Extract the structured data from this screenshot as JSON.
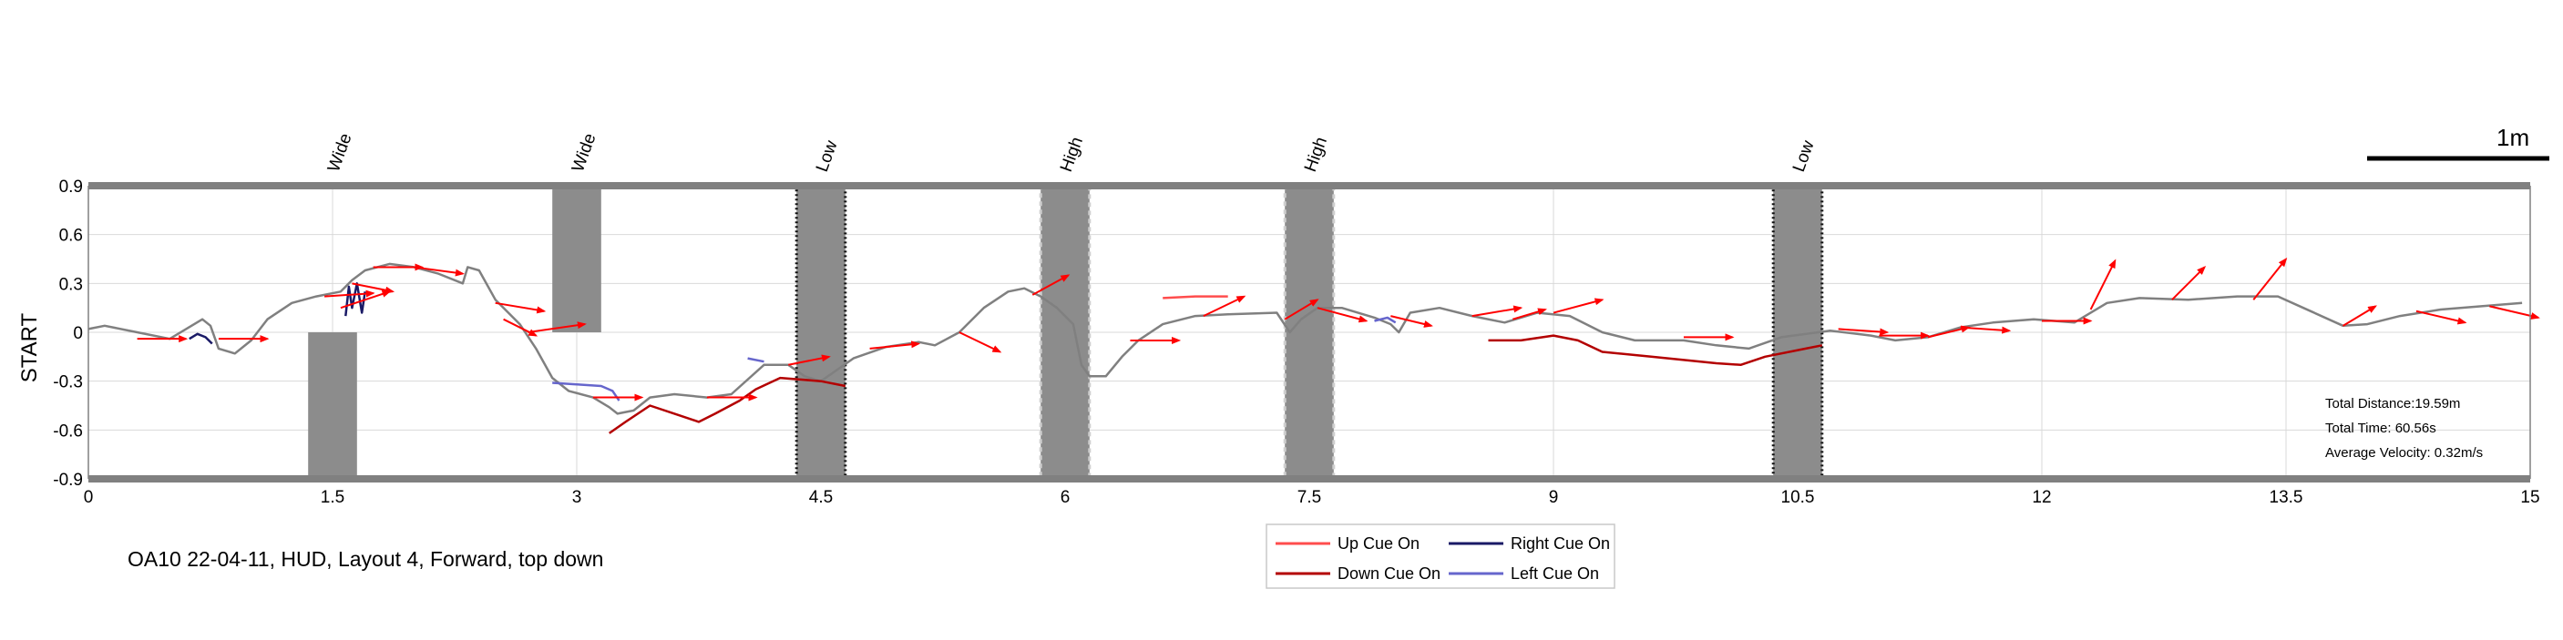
{
  "chart_data": {
    "type": "line",
    "ylabel": "START",
    "xlim": [
      0,
      15
    ],
    "ylim": [
      -0.9,
      0.9
    ],
    "xticks": [
      "0",
      "1.5",
      "3",
      "4.5",
      "6",
      "7.5",
      "9",
      "10.5",
      "12",
      "13.5",
      "15"
    ],
    "xtick_values": [
      0,
      1.5,
      3,
      4.5,
      6,
      7.5,
      9,
      10.5,
      12,
      13.5,
      15
    ],
    "yticks": [
      "0.9",
      "0.6",
      "0.3",
      "0",
      "-0.3",
      "-0.6",
      "-0.9"
    ],
    "ytick_values": [
      0.9,
      0.6,
      0.3,
      0,
      -0.3,
      -0.6,
      -0.9
    ],
    "grid": true,
    "obstacles": [
      {
        "label": "Wide",
        "x0": 1.35,
        "x1": 1.65,
        "y0": -0.9,
        "y1": 0.0,
        "style": "solid"
      },
      {
        "label": "Wide",
        "x0": 2.85,
        "x1": 3.15,
        "y0": 0.0,
        "y1": 0.9,
        "style": "solid"
      },
      {
        "label": "Low",
        "x0": 4.35,
        "x1": 4.65,
        "y0": -0.9,
        "y1": 0.9,
        "style": "dotted-dark"
      },
      {
        "label": "High",
        "x0": 5.85,
        "x1": 6.15,
        "y0": -0.9,
        "y1": 0.9,
        "style": "dashed-light"
      },
      {
        "label": "High",
        "x0": 7.35,
        "x1": 7.65,
        "y0": -0.9,
        "y1": 0.9,
        "style": "dashed-light"
      },
      {
        "label": "Low",
        "x0": 10.35,
        "x1": 10.65,
        "y0": -0.9,
        "y1": 0.9,
        "style": "dotted-dark"
      }
    ],
    "series": [
      {
        "name": "trajectory",
        "color": "#808080",
        "points": [
          [
            0,
            0.02
          ],
          [
            0.1,
            0.04
          ],
          [
            0.3,
            0.0
          ],
          [
            0.5,
            -0.04
          ],
          [
            0.6,
            0.02
          ],
          [
            0.7,
            0.08
          ],
          [
            0.75,
            0.04
          ],
          [
            0.8,
            -0.1
          ],
          [
            0.9,
            -0.13
          ],
          [
            1.0,
            -0.05
          ],
          [
            1.1,
            0.08
          ],
          [
            1.25,
            0.18
          ],
          [
            1.4,
            0.22
          ],
          [
            1.55,
            0.25
          ],
          [
            1.62,
            0.32
          ],
          [
            1.7,
            0.38
          ],
          [
            1.85,
            0.42
          ],
          [
            2.0,
            0.4
          ],
          [
            2.15,
            0.36
          ],
          [
            2.3,
            0.3
          ],
          [
            2.33,
            0.4
          ],
          [
            2.4,
            0.38
          ],
          [
            2.5,
            0.2
          ],
          [
            2.65,
            0.05
          ],
          [
            2.75,
            -0.1
          ],
          [
            2.85,
            -0.28
          ],
          [
            2.95,
            -0.36
          ],
          [
            3.1,
            -0.4
          ],
          [
            3.2,
            -0.46
          ],
          [
            3.25,
            -0.5
          ],
          [
            3.35,
            -0.48
          ],
          [
            3.45,
            -0.4
          ],
          [
            3.6,
            -0.38
          ],
          [
            3.8,
            -0.4
          ],
          [
            3.95,
            -0.38
          ],
          [
            4.15,
            -0.2
          ],
          [
            4.3,
            -0.2
          ],
          [
            4.4,
            -0.27
          ],
          [
            4.5,
            -0.3
          ],
          [
            4.7,
            -0.16
          ],
          [
            4.9,
            -0.09
          ],
          [
            5.1,
            -0.06
          ],
          [
            5.2,
            -0.08
          ],
          [
            5.35,
            0.0
          ],
          [
            5.5,
            0.15
          ],
          [
            5.65,
            0.25
          ],
          [
            5.75,
            0.27
          ],
          [
            5.85,
            0.22
          ],
          [
            5.95,
            0.15
          ],
          [
            6.05,
            0.05
          ],
          [
            6.1,
            -0.2
          ],
          [
            6.15,
            -0.27
          ],
          [
            6.25,
            -0.27
          ],
          [
            6.35,
            -0.15
          ],
          [
            6.45,
            -0.05
          ],
          [
            6.6,
            0.05
          ],
          [
            6.8,
            0.1
          ],
          [
            7.0,
            0.11
          ],
          [
            7.3,
            0.12
          ],
          [
            7.38,
            0.0
          ],
          [
            7.45,
            0.08
          ],
          [
            7.55,
            0.15
          ],
          [
            7.7,
            0.15
          ],
          [
            7.9,
            0.09
          ],
          [
            8.0,
            0.05
          ],
          [
            8.05,
            0.0
          ],
          [
            8.12,
            0.12
          ],
          [
            8.3,
            0.15
          ],
          [
            8.5,
            0.1
          ],
          [
            8.7,
            0.06
          ],
          [
            8.9,
            0.12
          ],
          [
            9.1,
            0.1
          ],
          [
            9.3,
            0.0
          ],
          [
            9.5,
            -0.05
          ],
          [
            9.8,
            -0.05
          ],
          [
            10.0,
            -0.08
          ],
          [
            10.2,
            -0.1
          ],
          [
            10.4,
            -0.03
          ],
          [
            10.7,
            0.01
          ],
          [
            10.95,
            -0.02
          ],
          [
            11.1,
            -0.05
          ],
          [
            11.3,
            -0.03
          ],
          [
            11.5,
            0.03
          ],
          [
            11.7,
            0.06
          ],
          [
            11.95,
            0.08
          ],
          [
            12.2,
            0.06
          ],
          [
            12.4,
            0.18
          ],
          [
            12.6,
            0.21
          ],
          [
            12.9,
            0.2
          ],
          [
            13.2,
            0.22
          ],
          [
            13.45,
            0.22
          ],
          [
            13.65,
            0.13
          ],
          [
            13.85,
            0.04
          ],
          [
            14.0,
            0.05
          ],
          [
            14.2,
            0.1
          ],
          [
            14.45,
            0.14
          ],
          [
            14.7,
            0.16
          ],
          [
            14.95,
            0.18
          ]
        ]
      },
      {
        "name": "Up Cue On",
        "color": "#ff4d4d",
        "points": [
          [
            6.6,
            0.21
          ],
          [
            6.8,
            0.22
          ],
          [
            7.0,
            0.22
          ]
        ]
      },
      {
        "name": "Down Cue On",
        "color": "#b30000",
        "points": [
          [
            3.2,
            -0.62
          ],
          [
            3.3,
            -0.55
          ],
          [
            3.45,
            -0.45
          ],
          [
            3.6,
            -0.5
          ],
          [
            3.75,
            -0.55
          ],
          [
            3.85,
            -0.5
          ],
          [
            4.0,
            -0.42
          ],
          [
            4.1,
            -0.35
          ],
          [
            4.25,
            -0.28
          ],
          [
            4.5,
            -0.3
          ],
          [
            4.65,
            -0.33
          ]
        ]
      },
      {
        "name": "Down Cue On",
        "color": "#b30000",
        "points": [
          [
            8.6,
            -0.05
          ],
          [
            8.8,
            -0.05
          ],
          [
            9.0,
            -0.02
          ],
          [
            9.15,
            -0.05
          ],
          [
            9.3,
            -0.12
          ],
          [
            9.6,
            -0.15
          ],
          [
            10.0,
            -0.19
          ],
          [
            10.15,
            -0.2
          ],
          [
            10.3,
            -0.15
          ],
          [
            10.55,
            -0.1
          ],
          [
            10.65,
            -0.08
          ]
        ]
      },
      {
        "name": "Right Cue On",
        "color": "#1a1a66",
        "points": [
          [
            0.62,
            -0.04
          ],
          [
            0.67,
            -0.01
          ],
          [
            0.72,
            -0.03
          ],
          [
            0.76,
            -0.07
          ]
        ]
      },
      {
        "name": "Right Cue On",
        "color": "#1a1a66",
        "points": [
          [
            1.58,
            0.1
          ],
          [
            1.6,
            0.28
          ],
          [
            1.62,
            0.15
          ],
          [
            1.65,
            0.3
          ],
          [
            1.68,
            0.12
          ],
          [
            1.7,
            0.25
          ]
        ]
      },
      {
        "name": "Left Cue On",
        "color": "#6666cc",
        "points": [
          [
            2.85,
            -0.31
          ],
          [
            3.0,
            -0.32
          ],
          [
            3.15,
            -0.33
          ],
          [
            3.22,
            -0.36
          ],
          [
            3.26,
            -0.42
          ]
        ]
      },
      {
        "name": "Left Cue On",
        "color": "#6666cc",
        "points": [
          [
            4.05,
            -0.16
          ],
          [
            4.15,
            -0.18
          ]
        ]
      },
      {
        "name": "Left Cue On",
        "color": "#6666cc",
        "points": [
          [
            7.9,
            0.07
          ],
          [
            7.98,
            0.09
          ],
          [
            8.03,
            0.06
          ]
        ]
      }
    ],
    "arrows": [
      {
        "x": 0.3,
        "y": -0.04,
        "dx": 0.3,
        "dy": 0.0
      },
      {
        "x": 0.8,
        "y": -0.04,
        "dx": 0.3,
        "dy": 0.0
      },
      {
        "x": 1.45,
        "y": 0.22,
        "dx": 0.3,
        "dy": 0.02
      },
      {
        "x": 1.55,
        "y": 0.15,
        "dx": 0.3,
        "dy": 0.1
      },
      {
        "x": 1.62,
        "y": 0.3,
        "dx": 0.25,
        "dy": -0.05
      },
      {
        "x": 1.75,
        "y": 0.4,
        "dx": 0.3,
        "dy": 0.0
      },
      {
        "x": 2.0,
        "y": 0.4,
        "dx": 0.3,
        "dy": -0.04
      },
      {
        "x": 2.5,
        "y": 0.18,
        "dx": 0.3,
        "dy": -0.05
      },
      {
        "x": 2.55,
        "y": 0.08,
        "dx": 0.2,
        "dy": -0.1
      },
      {
        "x": 2.7,
        "y": 0.0,
        "dx": 0.35,
        "dy": 0.05
      },
      {
        "x": 3.1,
        "y": -0.4,
        "dx": 0.3,
        "dy": 0.0
      },
      {
        "x": 3.8,
        "y": -0.4,
        "dx": 0.3,
        "dy": 0.0
      },
      {
        "x": 4.3,
        "y": -0.2,
        "dx": 0.25,
        "dy": 0.05
      },
      {
        "x": 4.8,
        "y": -0.1,
        "dx": 0.3,
        "dy": 0.03
      },
      {
        "x": 5.35,
        "y": 0.0,
        "dx": 0.25,
        "dy": -0.12
      },
      {
        "x": 5.8,
        "y": 0.23,
        "dx": 0.22,
        "dy": 0.12
      },
      {
        "x": 6.4,
        "y": -0.05,
        "dx": 0.3,
        "dy": 0.0
      },
      {
        "x": 6.85,
        "y": 0.1,
        "dx": 0.25,
        "dy": 0.12
      },
      {
        "x": 7.35,
        "y": 0.08,
        "dx": 0.2,
        "dy": 0.12
      },
      {
        "x": 7.55,
        "y": 0.15,
        "dx": 0.3,
        "dy": -0.08
      },
      {
        "x": 8.0,
        "y": 0.1,
        "dx": 0.25,
        "dy": -0.06
      },
      {
        "x": 8.5,
        "y": 0.1,
        "dx": 0.3,
        "dy": 0.05
      },
      {
        "x": 8.75,
        "y": 0.08,
        "dx": 0.2,
        "dy": 0.06
      },
      {
        "x": 9.0,
        "y": 0.12,
        "dx": 0.3,
        "dy": 0.08
      },
      {
        "x": 9.8,
        "y": -0.03,
        "dx": 0.3,
        "dy": 0.0
      },
      {
        "x": 10.75,
        "y": 0.02,
        "dx": 0.3,
        "dy": -0.02
      },
      {
        "x": 11.0,
        "y": -0.02,
        "dx": 0.3,
        "dy": 0.0
      },
      {
        "x": 11.3,
        "y": -0.03,
        "dx": 0.25,
        "dy": 0.06
      },
      {
        "x": 11.5,
        "y": 0.03,
        "dx": 0.3,
        "dy": -0.02
      },
      {
        "x": 12.0,
        "y": 0.07,
        "dx": 0.3,
        "dy": 0.0
      },
      {
        "x": 12.3,
        "y": 0.14,
        "dx": 0.15,
        "dy": 0.3
      },
      {
        "x": 12.8,
        "y": 0.2,
        "dx": 0.2,
        "dy": 0.2
      },
      {
        "x": 13.3,
        "y": 0.2,
        "dx": 0.2,
        "dy": 0.25
      },
      {
        "x": 13.85,
        "y": 0.04,
        "dx": 0.2,
        "dy": 0.12
      },
      {
        "x": 14.3,
        "y": 0.13,
        "dx": 0.3,
        "dy": -0.07
      },
      {
        "x": 14.75,
        "y": 0.16,
        "dx": 0.3,
        "dy": -0.07
      }
    ],
    "stats": [
      "Total Distance:19.59m",
      "Total Time: 60.56s",
      "Average Velocity: 0.32m/s"
    ],
    "scale_bar_label": "1m",
    "caption": "OA10 22-04-11, HUD, Layout 4, Forward, top down",
    "legend": [
      {
        "label": "Up Cue On",
        "color": "#ff4d4d"
      },
      {
        "label": "Right Cue On",
        "color": "#1a1a66"
      },
      {
        "label": "Down Cue On",
        "color": "#b30000"
      },
      {
        "label": "Left Cue On",
        "color": "#6666cc"
      }
    ]
  }
}
